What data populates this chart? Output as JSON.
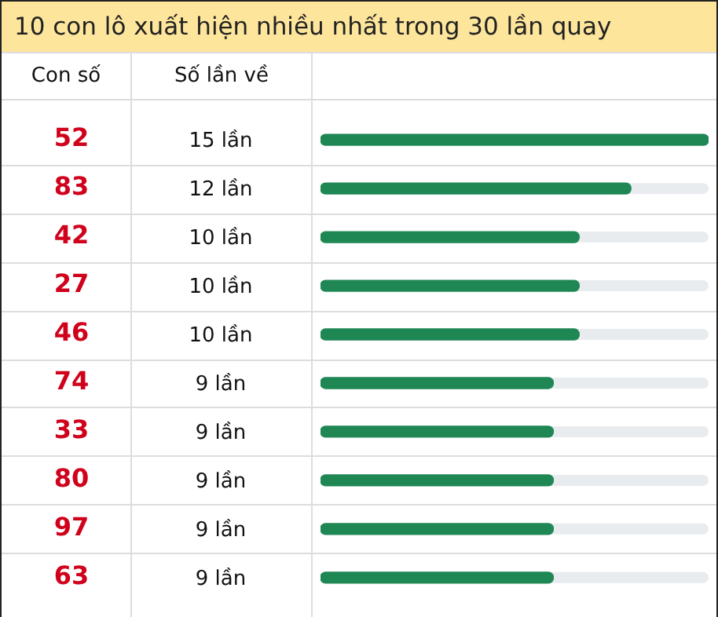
{
  "chart_data": {
    "type": "bar",
    "orientation": "horizontal",
    "title": "10 con lô xuất hiện nhiều nhất trong 30 lần quay",
    "ylabel": "Con số",
    "xlabel": "Số lần về",
    "categories": [
      "52",
      "83",
      "42",
      "27",
      "46",
      "74",
      "33",
      "80",
      "97",
      "63"
    ],
    "values": [
      15,
      12,
      10,
      10,
      10,
      9,
      9,
      9,
      9,
      9
    ],
    "value_labels": [
      "15 lần",
      "12 lần",
      "10 lần",
      "10 lần",
      "10 lần",
      "9 lần",
      "9 lần",
      "9 lần",
      "9 lần",
      "9 lần"
    ],
    "color": "#1e8754"
  }
}
